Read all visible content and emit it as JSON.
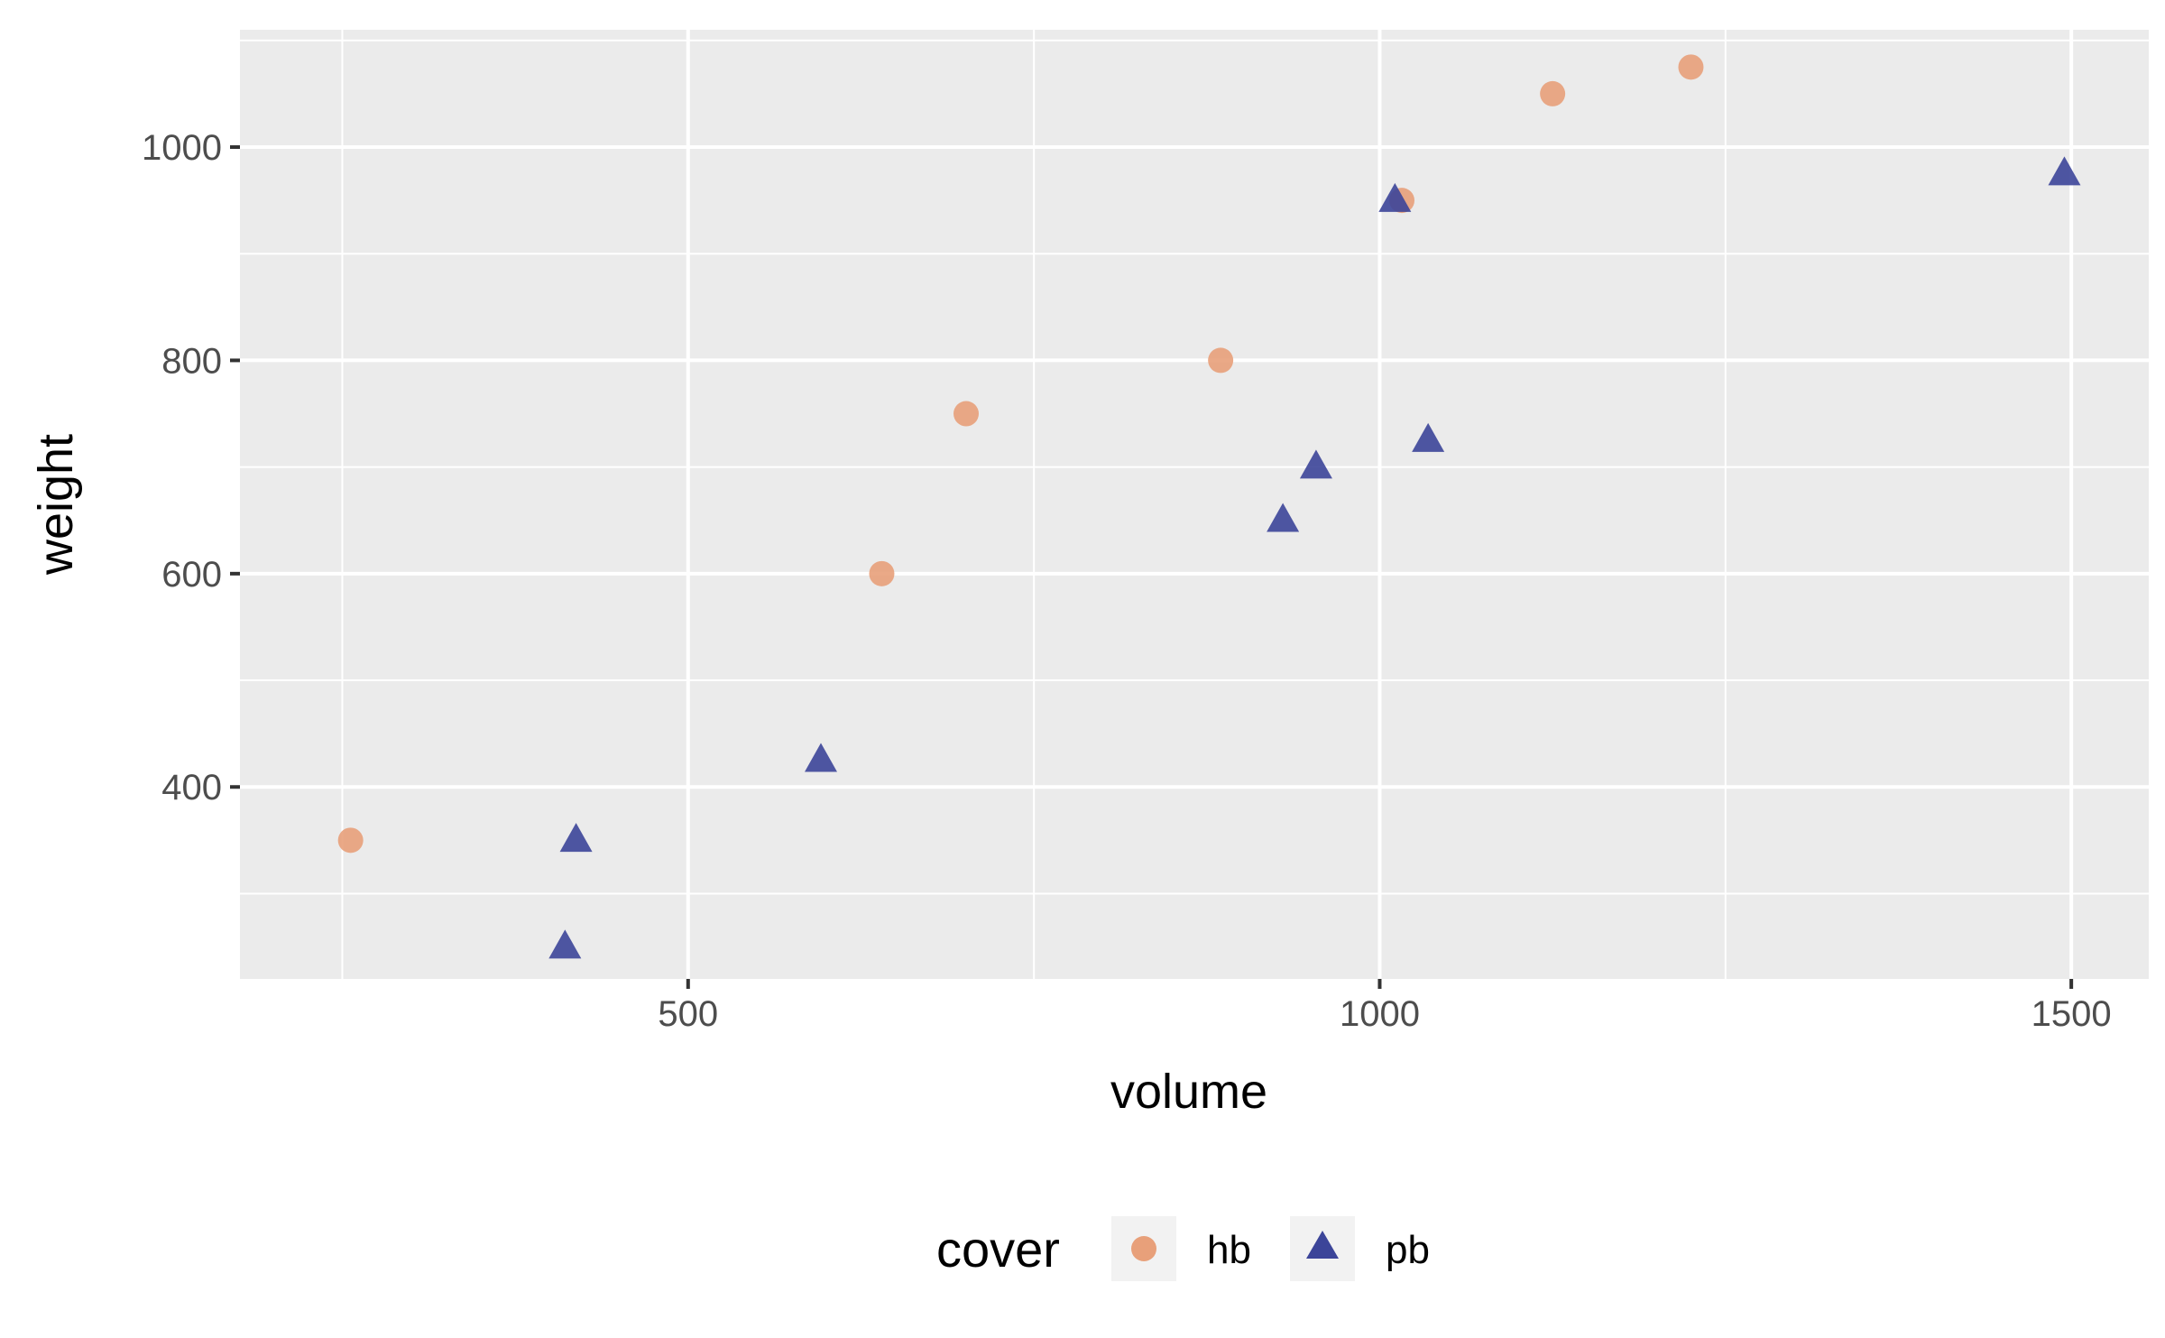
{
  "chart_data": {
    "type": "scatter",
    "xlabel": "volume",
    "ylabel": "weight",
    "xlim": [
      176,
      1556
    ],
    "ylim": [
      220,
      1110
    ],
    "x_ticks": [
      500,
      1000,
      1500
    ],
    "x_tick_labels": [
      "500",
      "1000",
      "1500"
    ],
    "x_minor_ticks": [
      250,
      750,
      1250
    ],
    "y_ticks": [
      400,
      600,
      800,
      1000
    ],
    "y_tick_labels": [
      "400",
      "600",
      "800",
      "1000"
    ],
    "y_minor_ticks": [
      300,
      500,
      700,
      900,
      1100
    ],
    "legend": {
      "title": "cover",
      "position": "bottom",
      "entries": [
        {
          "label": "hb",
          "shape": "circle",
          "color": "#E8A07A"
        },
        {
          "label": "pb",
          "shape": "triangle",
          "color": "#3C4599"
        }
      ]
    },
    "series": [
      {
        "name": "hb",
        "shape": "circle",
        "color": "#E8A07A",
        "x": [
          885,
          1016,
          1125,
          1228,
          412,
          1228,
          1225,
          640,
          701
        ],
        "y": [
          800,
          950,
          1050,
          1075,
          250,
          1075,
          1075,
          600,
          750
        ]
      },
      {
        "name": "pb",
        "shape": "triangle",
        "color": "#3C4599",
        "points": [
          [
            1011,
            950
          ],
          [
            1495,
            975
          ],
          [
            954,
            700
          ],
          [
            930,
            650
          ],
          [
            1035,
            725
          ],
          [
            596,
            425
          ],
          [
            419,
            350
          ],
          [
            411,
            250
          ]
        ]
      }
    ],
    "colors": {
      "panel": "#EBEBEB",
      "grid": "#FFFFFF",
      "background": "#FFFFFF"
    }
  }
}
